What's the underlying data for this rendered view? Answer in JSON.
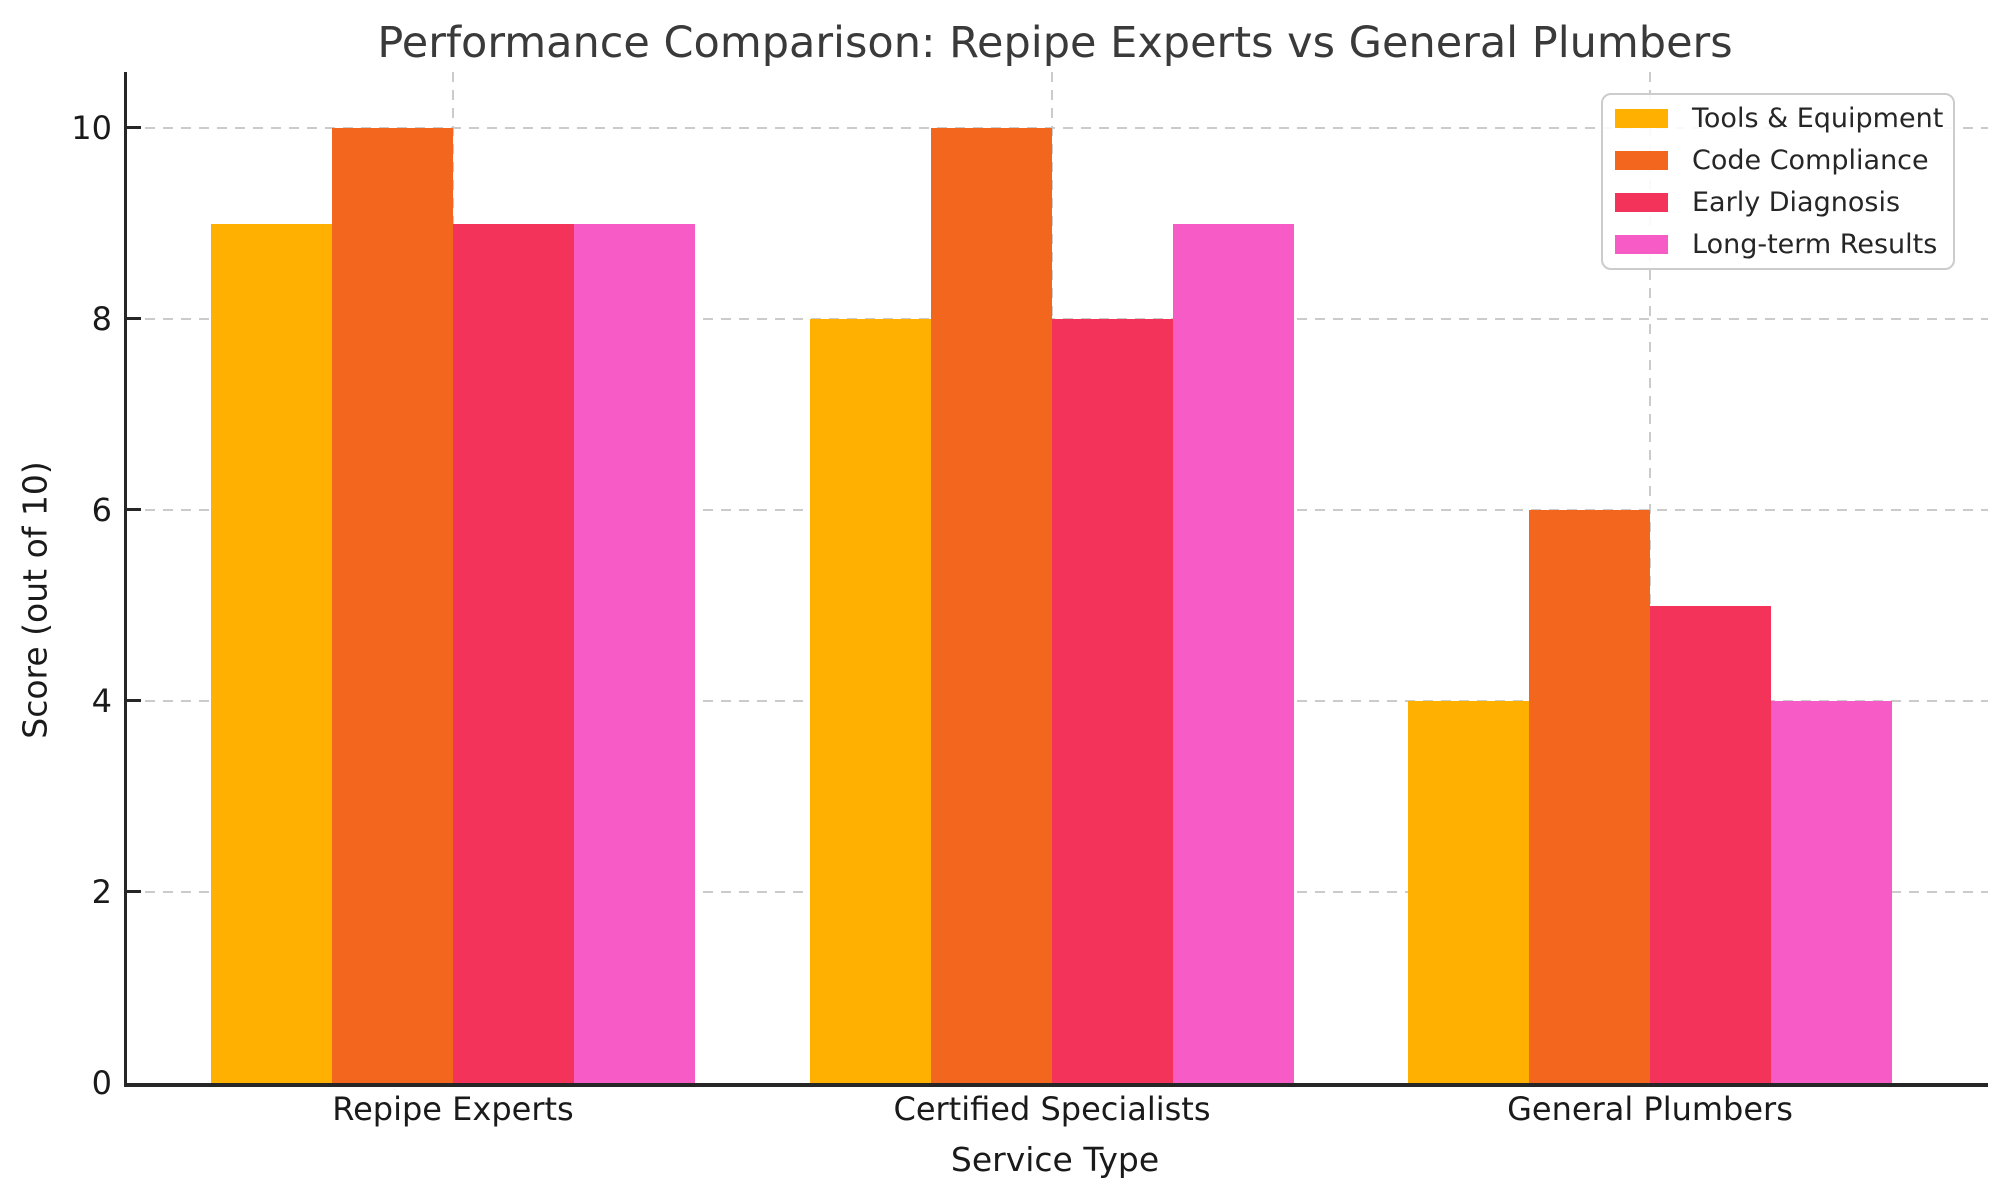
{
  "figure": {
    "background": "#ffffff",
    "title_color": "#3a3a3a",
    "axis_color": "#262626",
    "gridline_color": "#cbcbcb"
  },
  "chart_data": {
    "type": "bar",
    "title": "Performance Comparison: Repipe Experts vs General Plumbers",
    "xlabel": "Service Type",
    "ylabel": "Score (out of 10)",
    "categories": [
      "Repipe Experts",
      "Certified Specialists",
      "General Plumbers"
    ],
    "series": [
      {
        "name": "Tools & Equipment",
        "color": "#FFB000",
        "values": [
          9,
          8,
          4
        ]
      },
      {
        "name": "Code Compliance",
        "color": "#F2661E",
        "values": [
          10,
          10,
          6
        ]
      },
      {
        "name": "Early Diagnosis",
        "color": "#F4335A",
        "values": [
          9,
          8,
          5
        ]
      },
      {
        "name": "Long-term Results",
        "color": "#F75BC6",
        "values": [
          9,
          9,
          4
        ]
      }
    ],
    "ylim": [
      0,
      10.55
    ],
    "yticks": [
      0,
      2,
      4,
      6,
      8,
      10
    ],
    "grid": "dashed-horizontal-and-vertical",
    "legend_position": "upper right"
  }
}
